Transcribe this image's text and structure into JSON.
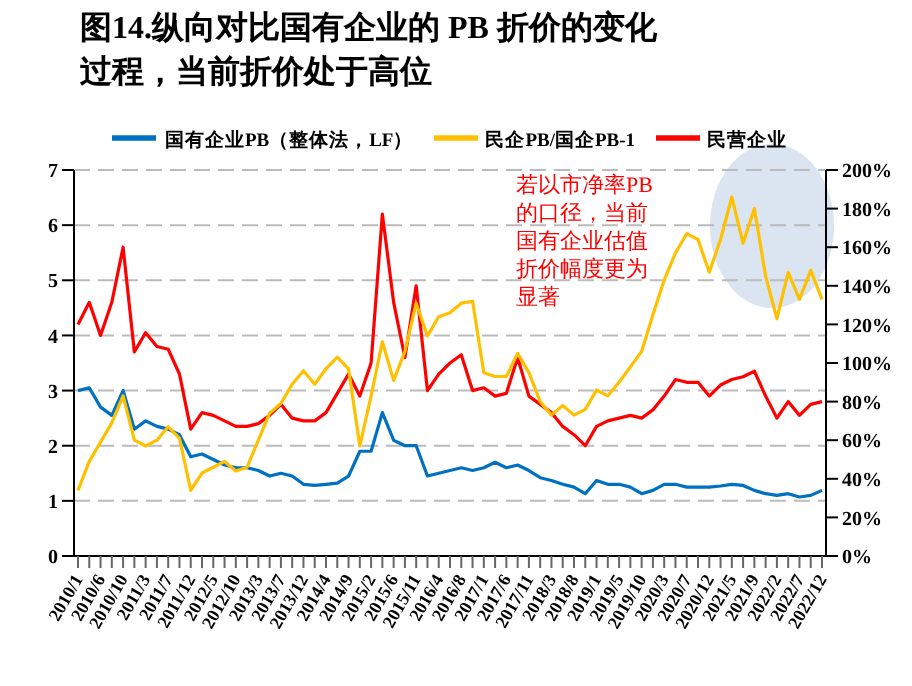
{
  "chart_data": {
    "type": "line",
    "title": "图14.纵向对比国有企业的 PB 折价的变化过程，当前折价处于高位",
    "categories": [
      "2010/1",
      null,
      "2010/6",
      null,
      "2010/10",
      null,
      "2011/3",
      null,
      "2011/7",
      null,
      "2011/12",
      null,
      "2012/5",
      null,
      "2012/10",
      null,
      "2013/3",
      null,
      "2013/7",
      null,
      "2013/12",
      null,
      "2014/4",
      null,
      "2014/9",
      null,
      "2015/2",
      null,
      "2015/6",
      null,
      "2015/11",
      null,
      "2016/4",
      null,
      "2016/8",
      null,
      "2017/1",
      null,
      "2017/6",
      null,
      "2017/11",
      null,
      "2018/3",
      null,
      "2018/8",
      null,
      "2019/1",
      null,
      "2019/5",
      null,
      "2019/10",
      null,
      "2020/3",
      null,
      "2020/7",
      null,
      "2020/12",
      null,
      "2021/5",
      null,
      "2021/9",
      null,
      "2022/2",
      null,
      "2022/7",
      null,
      "2022/12"
    ],
    "series": [
      {
        "name": "国有企业PB（整体法，LF）",
        "color": "#0070c0",
        "values": [
          3.0,
          3.05,
          2.7,
          2.55,
          3.0,
          2.3,
          2.45,
          2.35,
          2.3,
          2.2,
          1.8,
          1.85,
          1.75,
          1.65,
          1.6,
          1.6,
          1.55,
          1.45,
          1.5,
          1.45,
          1.3,
          1.28,
          1.3,
          1.32,
          1.45,
          1.9,
          1.9,
          2.6,
          2.1,
          2.0,
          2.0,
          1.45,
          1.5,
          1.55,
          1.6,
          1.55,
          1.6,
          1.7,
          1.6,
          1.65,
          1.55,
          1.42,
          1.37,
          1.3,
          1.25,
          1.13,
          1.37,
          1.3,
          1.3,
          1.25,
          1.13,
          1.19,
          1.3,
          1.3,
          1.25,
          1.25,
          1.25,
          1.27,
          1.3,
          1.28,
          1.19,
          1.13,
          1.1,
          1.13,
          1.07,
          1.1,
          1.19
        ]
      },
      {
        "name": "民营企业",
        "color": "#ff0000",
        "values": [
          4.2,
          4.6,
          4.0,
          4.6,
          5.6,
          3.7,
          4.05,
          3.8,
          3.75,
          3.3,
          2.3,
          2.6,
          2.55,
          2.45,
          2.35,
          2.35,
          2.4,
          2.55,
          2.75,
          2.5,
          2.45,
          2.45,
          2.6,
          2.95,
          3.3,
          2.9,
          3.5,
          6.2,
          4.6,
          3.6,
          4.9,
          3.0,
          3.3,
          3.5,
          3.65,
          3.0,
          3.05,
          2.9,
          2.95,
          3.6,
          2.9,
          2.75,
          2.6,
          2.35,
          2.2,
          2.0,
          2.35,
          2.45,
          2.5,
          2.55,
          2.5,
          2.65,
          2.9,
          3.2,
          3.15,
          3.15,
          2.9,
          3.1,
          3.2,
          3.25,
          3.35,
          2.9,
          2.5,
          2.8,
          2.55,
          2.75,
          2.8
        ]
      },
      {
        "name": "民企PB/国企PB-1",
        "color": "#ffc000",
        "axis": "y2",
        "values": [
          34,
          49,
          59,
          69,
          83,
          60,
          57,
          60,
          67,
          61,
          34,
          43,
          46,
          49,
          44,
          46,
          60,
          74,
          79,
          89,
          96,
          89,
          97,
          103,
          97,
          57,
          83,
          111,
          91,
          106,
          131,
          114,
          124,
          126,
          131,
          132,
          95,
          93,
          93,
          105,
          95,
          80,
          73,
          78,
          73,
          76,
          86,
          83,
          90,
          98,
          106,
          125,
          143,
          157,
          167,
          164,
          147,
          164,
          186,
          162,
          180,
          145,
          123,
          147,
          133,
          148,
          133
        ]
      }
    ],
    "ylim": [
      0,
      7
    ],
    "yticks": [
      0,
      1,
      2,
      3,
      4,
      5,
      6,
      7
    ],
    "y2lim": [
      0,
      200
    ],
    "y2ticks": [
      {
        "value": 0,
        "label": "0%"
      },
      {
        "value": 20,
        "label": "20%"
      },
      {
        "value": 40,
        "label": "40%"
      },
      {
        "value": 60,
        "label": "60%"
      },
      {
        "value": 80,
        "label": "80%"
      },
      {
        "value": 100,
        "label": "100%"
      },
      {
        "value": 120,
        "label": "120%"
      },
      {
        "value": 140,
        "label": "140%"
      },
      {
        "value": 160,
        "label": "160%"
      },
      {
        "value": 180,
        "label": "180%"
      },
      {
        "value": 200,
        "label": "200%"
      }
    ],
    "grid": "y",
    "legend": "top",
    "marker": "none",
    "line_style": "solid",
    "annotations": [
      "若以市净率PB的口径，当前国有企业估值折价幅度更为显著"
    ]
  }
}
